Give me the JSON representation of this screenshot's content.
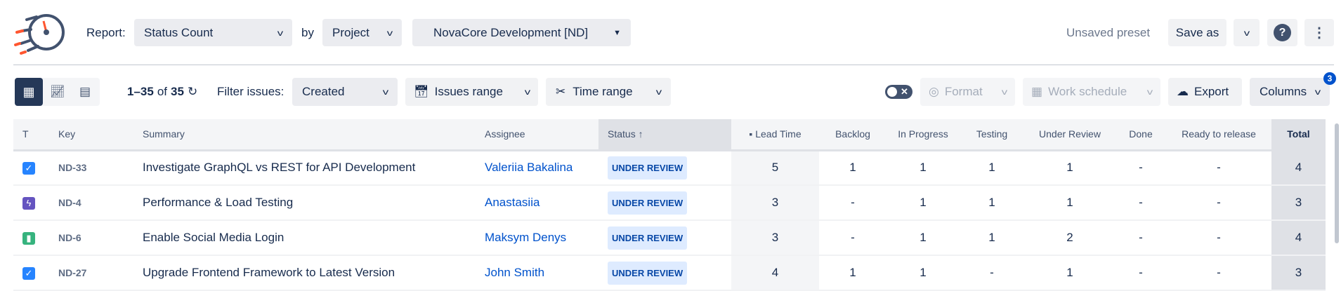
{
  "header": {
    "report_label": "Report:",
    "report_value": "Status Count",
    "by_label": "by",
    "group_value": "Project",
    "project_value": "NovaCore Development [ND]",
    "preset_status": "Unsaved preset",
    "save_as": "Save as"
  },
  "toolbar": {
    "range_start": "1–35",
    "of": "of",
    "total": "35",
    "filter_label": "Filter issues:",
    "filter_value": "Created",
    "issues_range": "Issues range",
    "time_range": "Time range",
    "format": "Format",
    "work_schedule": "Work schedule",
    "export": "Export",
    "columns": "Columns",
    "columns_badge": "3"
  },
  "colors": {
    "accent": "#0052cc",
    "dark": "#253858",
    "badge_bg": "#deebff"
  },
  "table": {
    "headers": [
      "T",
      "Key",
      "Summary",
      "Assignee",
      "Status",
      "Lead Time",
      "Backlog",
      "In Progress",
      "Testing",
      "Under Review",
      "Done",
      "Ready to release",
      "Total"
    ],
    "sort": {
      "column": "Status",
      "direction": "asc"
    },
    "rows": [
      {
        "type": "task",
        "key": "ND-33",
        "summary": "Investigate GraphQL vs REST for API Development",
        "assignee": "Valeriia Bakalina",
        "status": "UNDER REVIEW",
        "lead": "5",
        "backlog": "1",
        "inprogress": "1",
        "testing": "1",
        "review": "1",
        "done": "-",
        "ready": "-",
        "total": "4"
      },
      {
        "type": "epic",
        "key": "ND-4",
        "summary": "Performance & Load Testing",
        "assignee": "Anastasiia",
        "status": "UNDER REVIEW",
        "lead": "3",
        "backlog": "-",
        "inprogress": "1",
        "testing": "1",
        "review": "1",
        "done": "-",
        "ready": "-",
        "total": "3"
      },
      {
        "type": "story",
        "key": "ND-6",
        "summary": "Enable Social Media Login",
        "assignee": "Maksym Denys",
        "status": "UNDER REVIEW",
        "lead": "3",
        "backlog": "-",
        "inprogress": "1",
        "testing": "1",
        "review": "2",
        "done": "-",
        "ready": "-",
        "total": "4"
      },
      {
        "type": "task",
        "key": "ND-27",
        "summary": "Upgrade Frontend Framework to Latest Version",
        "assignee": "John Smith",
        "status": "UNDER REVIEW",
        "lead": "4",
        "backlog": "1",
        "inprogress": "1",
        "testing": "-",
        "review": "1",
        "done": "-",
        "ready": "-",
        "total": "3"
      }
    ]
  }
}
